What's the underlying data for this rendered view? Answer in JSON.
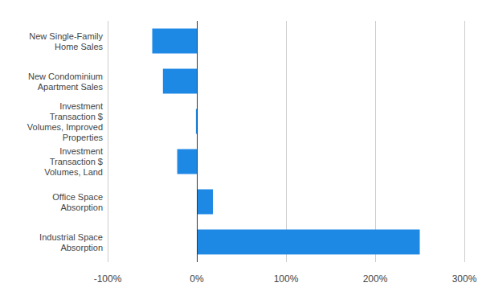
{
  "chart_data": {
    "type": "bar",
    "orientation": "horizontal",
    "categories": [
      "New Single-Family Home Sales",
      "New Condominium Apartment Sales",
      "Investment Transaction $ Volumes, Improved Properties",
      "Investment Transaction $ Volumes, Land",
      "Office Space Absorption",
      "Industrial Space Absorption"
    ],
    "values": [
      -50,
      -38,
      -1,
      -22,
      18,
      250
    ],
    "color": "#1e88e5",
    "xlim": [
      -100,
      300
    ],
    "xticks": [
      {
        "value": -100,
        "label": "-100%"
      },
      {
        "value": 0,
        "label": "0%"
      },
      {
        "value": 100,
        "label": "100%"
      },
      {
        "value": 200,
        "label": "200%"
      },
      {
        "value": 300,
        "label": "300%"
      }
    ],
    "grid": true
  }
}
